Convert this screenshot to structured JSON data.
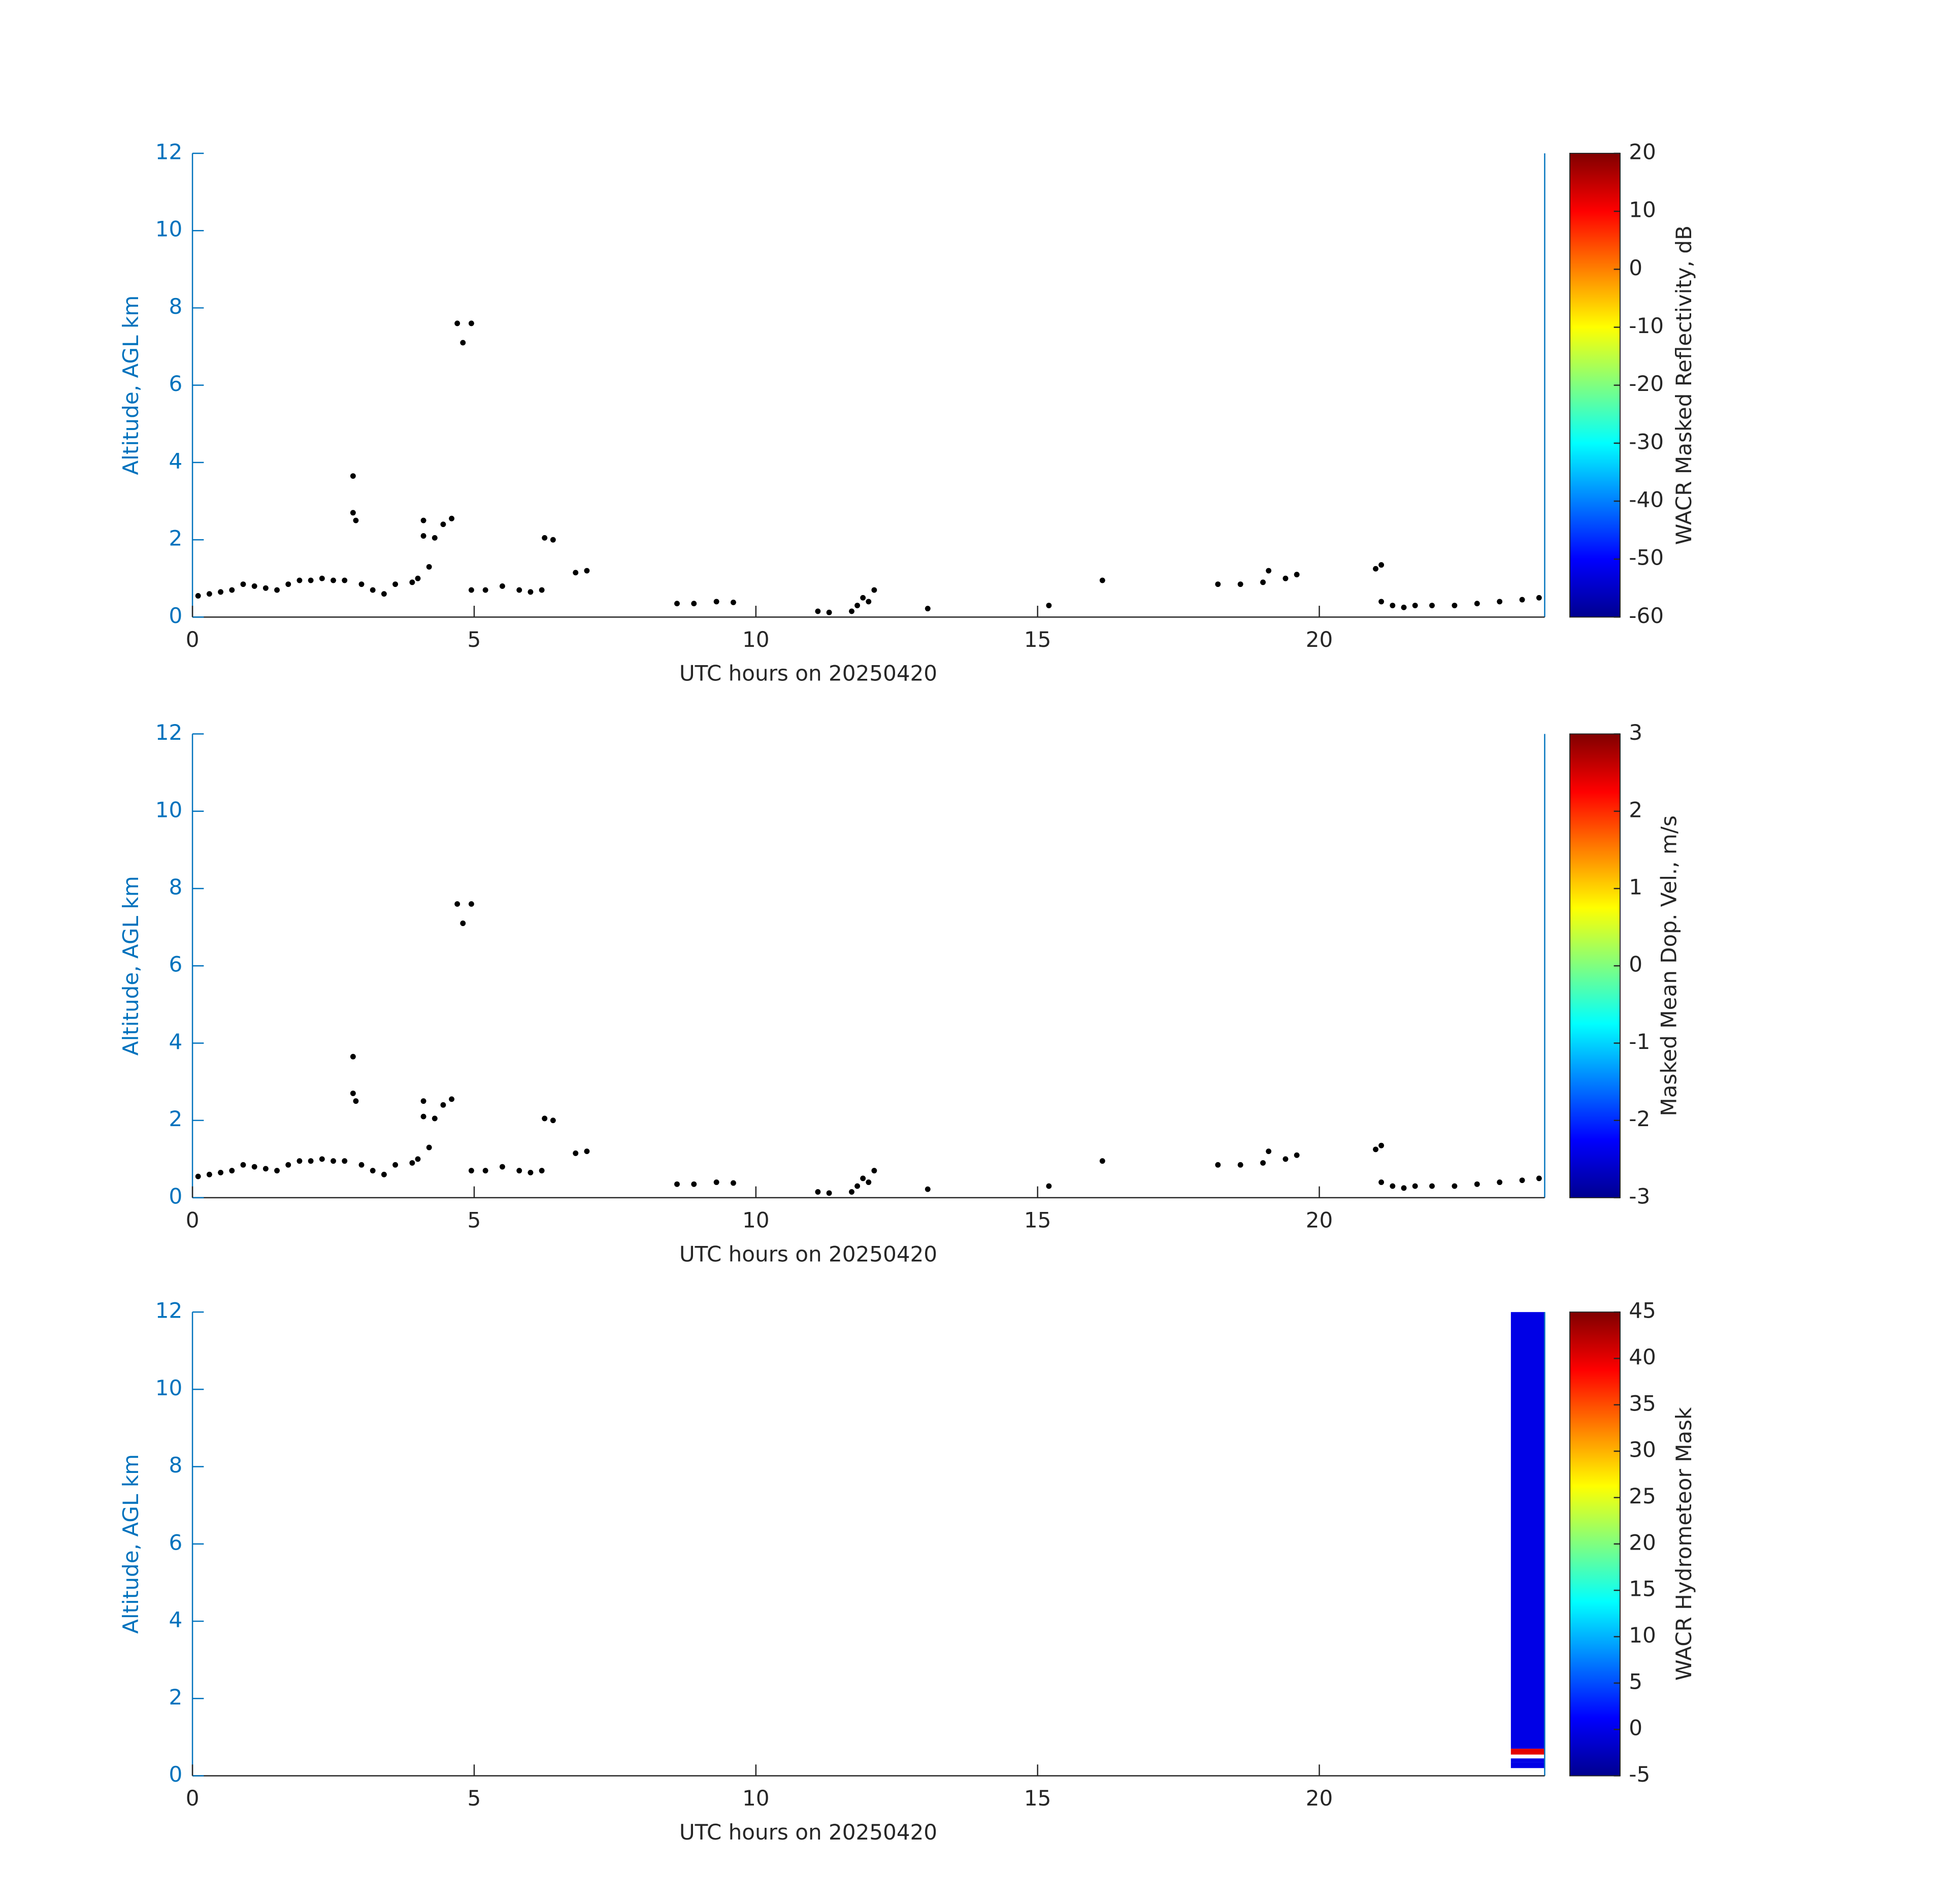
{
  "chart_data": [
    {
      "type": "scatter",
      "xlabel": "UTC hours on 20250420",
      "ylabel": "Altitude, AGL km",
      "xlim": [
        0,
        24
      ],
      "ylim": [
        0,
        12
      ],
      "xticks": [
        0,
        5,
        10,
        15,
        20
      ],
      "yticks": [
        0,
        2,
        4,
        6,
        8,
        10,
        12
      ],
      "color": "#000000",
      "x": [
        0.1,
        0.3,
        0.5,
        0.7,
        0.9,
        1.1,
        1.3,
        1.5,
        1.7,
        1.9,
        2.1,
        2.3,
        2.5,
        2.7,
        2.85,
        2.85,
        2.9,
        3.0,
        3.2,
        3.4,
        3.6,
        3.9,
        4.0,
        4.1,
        4.1,
        4.2,
        4.3,
        4.45,
        4.6,
        4.7,
        4.8,
        4.95,
        4.95,
        5.2,
        5.5,
        5.8,
        6.0,
        6.2,
        6.25,
        6.4,
        6.8,
        7.0,
        8.6,
        8.9,
        9.3,
        9.6,
        11.1,
        11.3,
        11.7,
        11.8,
        11.9,
        12.0,
        12.1,
        13.05,
        15.2,
        16.15,
        18.2,
        18.6,
        19.0,
        19.1,
        19.4,
        19.6,
        21.0,
        21.1,
        21.1,
        21.3,
        21.5,
        21.7,
        22.0,
        22.4,
        22.8,
        23.2,
        23.6,
        23.9
      ],
      "y": [
        0.55,
        0.6,
        0.65,
        0.7,
        0.85,
        0.8,
        0.75,
        0.7,
        0.85,
        0.95,
        0.95,
        1.0,
        0.95,
        0.95,
        2.7,
        3.65,
        2.5,
        0.85,
        0.7,
        0.6,
        0.85,
        0.9,
        1.0,
        2.1,
        2.5,
        1.3,
        2.05,
        2.4,
        2.55,
        7.6,
        7.1,
        7.6,
        0.7,
        0.7,
        0.8,
        0.7,
        0.65,
        0.7,
        2.05,
        2.0,
        1.15,
        1.2,
        0.35,
        0.35,
        0.4,
        0.38,
        0.15,
        0.12,
        0.15,
        0.3,
        0.5,
        0.4,
        0.7,
        0.22,
        0.3,
        0.95,
        0.85,
        0.85,
        0.9,
        1.2,
        1.0,
        1.1,
        1.25,
        1.35,
        0.4,
        0.3,
        0.25,
        0.3,
        0.3,
        0.3,
        0.35,
        0.4,
        0.45,
        0.5
      ],
      "colorbar": {
        "label": "WACR Masked Reflectivity, dB",
        "lim": [
          -60,
          20
        ],
        "ticks": [
          -60,
          -50,
          -40,
          -30,
          -20,
          -10,
          0,
          10,
          20
        ]
      }
    },
    {
      "type": "scatter",
      "xlabel": "UTC hours on 20250420",
      "ylabel": "Altitude, AGL km",
      "xlim": [
        0,
        24
      ],
      "ylim": [
        0,
        12
      ],
      "xticks": [
        0,
        5,
        10,
        15,
        20
      ],
      "yticks": [
        0,
        2,
        4,
        6,
        8,
        10,
        12
      ],
      "color": "#000000",
      "x": [
        0.1,
        0.3,
        0.5,
        0.7,
        0.9,
        1.1,
        1.3,
        1.5,
        1.7,
        1.9,
        2.1,
        2.3,
        2.5,
        2.7,
        2.85,
        2.85,
        2.9,
        3.0,
        3.2,
        3.4,
        3.6,
        3.9,
        4.0,
        4.1,
        4.1,
        4.2,
        4.3,
        4.45,
        4.6,
        4.7,
        4.8,
        4.95,
        4.95,
        5.2,
        5.5,
        5.8,
        6.0,
        6.2,
        6.25,
        6.4,
        6.8,
        7.0,
        8.6,
        8.9,
        9.3,
        9.6,
        11.1,
        11.3,
        11.7,
        11.8,
        11.9,
        12.0,
        12.1,
        13.05,
        15.2,
        16.15,
        18.2,
        18.6,
        19.0,
        19.1,
        19.4,
        19.6,
        21.0,
        21.1,
        21.1,
        21.3,
        21.5,
        21.7,
        22.0,
        22.4,
        22.8,
        23.2,
        23.6,
        23.9
      ],
      "y": [
        0.55,
        0.6,
        0.65,
        0.7,
        0.85,
        0.8,
        0.75,
        0.7,
        0.85,
        0.95,
        0.95,
        1.0,
        0.95,
        0.95,
        2.7,
        3.65,
        2.5,
        0.85,
        0.7,
        0.6,
        0.85,
        0.9,
        1.0,
        2.1,
        2.5,
        1.3,
        2.05,
        2.4,
        2.55,
        7.6,
        7.1,
        7.6,
        0.7,
        0.7,
        0.8,
        0.7,
        0.65,
        0.7,
        2.05,
        2.0,
        1.15,
        1.2,
        0.35,
        0.35,
        0.4,
        0.38,
        0.15,
        0.12,
        0.15,
        0.3,
        0.5,
        0.4,
        0.7,
        0.22,
        0.3,
        0.95,
        0.85,
        0.85,
        0.9,
        1.2,
        1.0,
        1.1,
        1.25,
        1.35,
        0.4,
        0.3,
        0.25,
        0.3,
        0.3,
        0.3,
        0.35,
        0.4,
        0.45,
        0.5
      ],
      "colorbar": {
        "label": "Masked Mean Dop. Vel., m/s",
        "lim": [
          -3,
          3
        ],
        "ticks": [
          -3,
          -2,
          -1,
          0,
          1,
          2,
          3
        ]
      }
    },
    {
      "type": "mask",
      "xlabel": "UTC hours on 20250420",
      "ylabel": "Altitude, AGL km",
      "xlim": [
        0,
        24
      ],
      "ylim": [
        0,
        12
      ],
      "xticks": [
        0,
        5,
        10,
        15,
        20
      ],
      "yticks": [
        0,
        2,
        4,
        6,
        8,
        10,
        12
      ],
      "regions": [
        {
          "x": [
            23.4,
            24
          ],
          "y": [
            0.7,
            12
          ],
          "value": 0
        },
        {
          "x": [
            23.4,
            24
          ],
          "y": [
            0.55,
            0.7
          ],
          "value": 40
        },
        {
          "x": [
            23.4,
            24
          ],
          "y": [
            0.35,
            0.45
          ],
          "value": 0
        },
        {
          "x": [
            23.4,
            24
          ],
          "y": [
            0.2,
            0.35
          ],
          "value": 0
        }
      ],
      "colorbar": {
        "label": "WACR Hydrometeor Mask",
        "lim": [
          -5,
          45
        ],
        "ticks": [
          -5,
          0,
          5,
          10,
          15,
          20,
          25,
          30,
          35,
          40,
          45
        ]
      }
    }
  ]
}
